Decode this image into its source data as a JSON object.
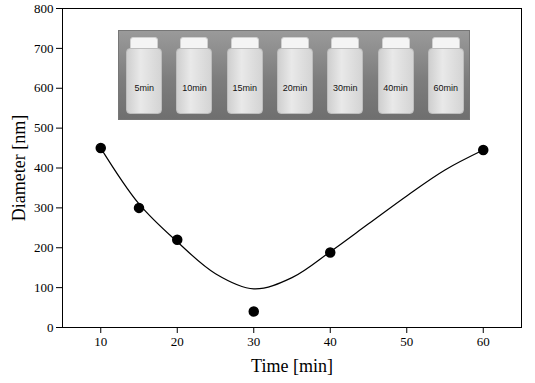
{
  "chart_data": {
    "type": "scatter",
    "x_label": "Time [min]",
    "y_label": "Diameter [nm]",
    "xlim": [
      5,
      65
    ],
    "xticks": [
      10,
      20,
      30,
      40,
      50,
      60
    ],
    "ylim": [
      0,
      800
    ],
    "yticks": [
      0,
      100,
      200,
      300,
      400,
      500,
      600,
      700,
      800
    ],
    "grid": false,
    "series": [
      {
        "type": "scatter",
        "marker": "circle",
        "color": "#000000",
        "x": [
          10,
          15,
          20,
          30,
          40,
          60
        ],
        "values": [
          450,
          300,
          220,
          40,
          188,
          445
        ]
      },
      {
        "type": "line",
        "line_style": "solid",
        "color": "#000000",
        "x": [
          10,
          15,
          20,
          25,
          30,
          35,
          40,
          45,
          50,
          55,
          60
        ],
        "values": [
          450,
          310,
          215,
          135,
          97,
          125,
          190,
          260,
          330,
          395,
          445
        ]
      }
    ],
    "inset_labels": [
      "5min",
      "10min",
      "15min",
      "20min",
      "30min",
      "40min",
      "60min"
    ]
  }
}
